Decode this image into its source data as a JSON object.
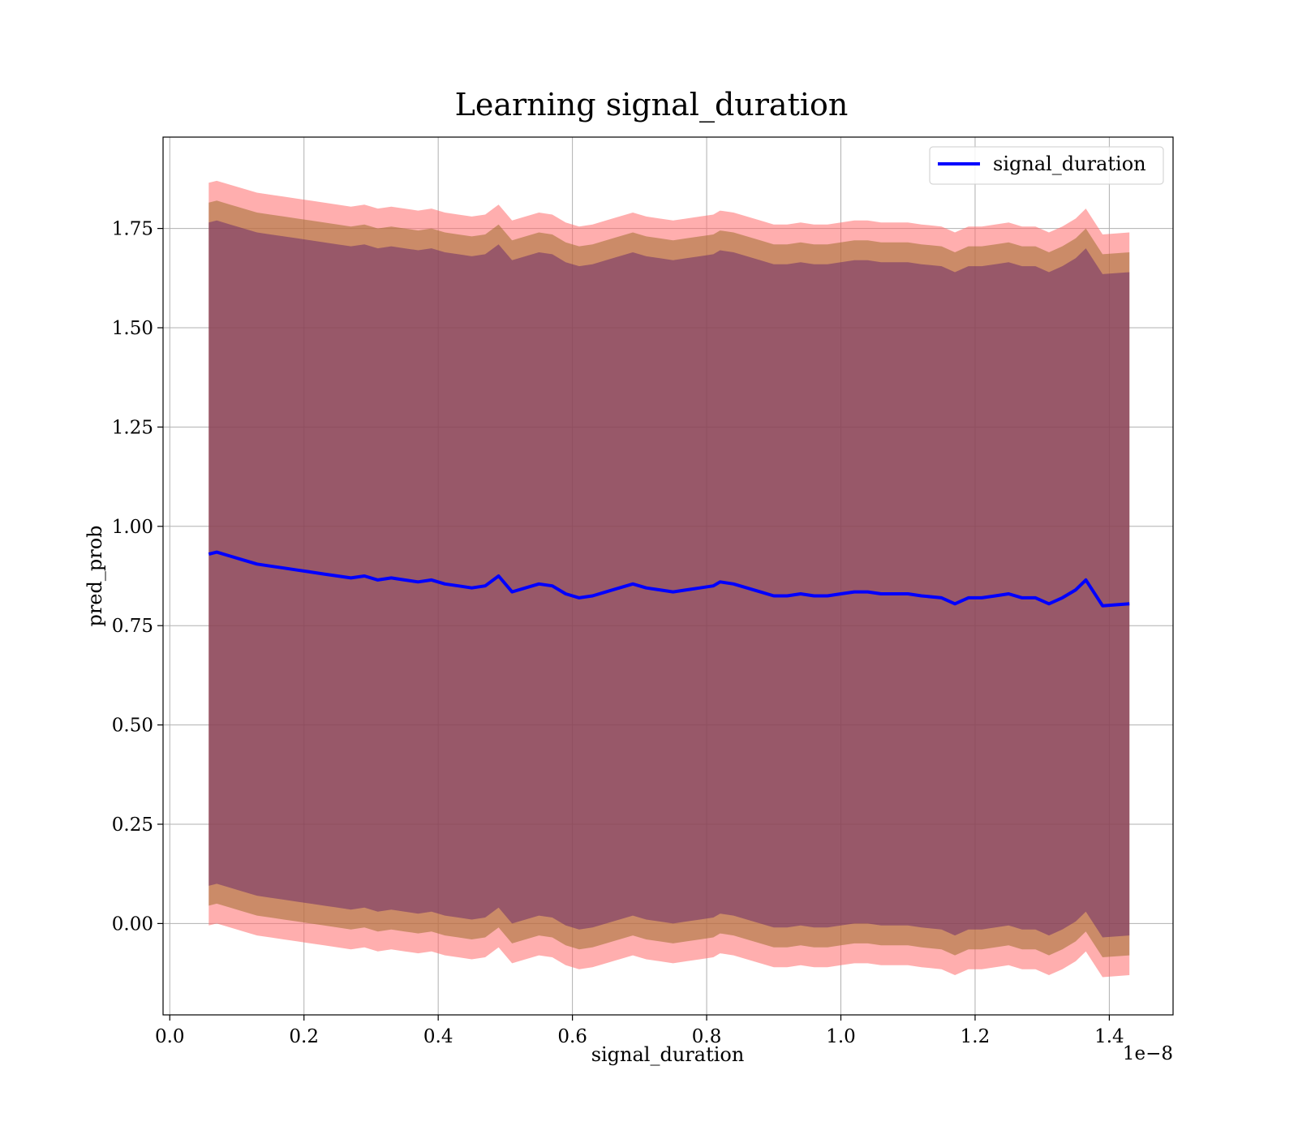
{
  "chart_data": {
    "type": "line",
    "title": "Learning signal_duration",
    "xlabel": "signal_duration",
    "ylabel": "pred_prob",
    "x_offset_label": "1e−8",
    "xlim": [
      -0.01,
      1.495
    ],
    "ylim": [
      -0.23,
      1.98
    ],
    "xticks": [
      0.0,
      0.2,
      0.4,
      0.6,
      0.8,
      1.0,
      1.2,
      1.4
    ],
    "xtick_labels": [
      "0.0",
      "0.2",
      "0.4",
      "0.6",
      "0.8",
      "1.0",
      "1.2",
      "1.4"
    ],
    "yticks": [
      0.0,
      0.25,
      0.5,
      0.75,
      1.0,
      1.25,
      1.5,
      1.75
    ],
    "ytick_labels": [
      "0.00",
      "0.25",
      "0.50",
      "0.75",
      "1.00",
      "1.25",
      "1.50",
      "1.75"
    ],
    "grid": true,
    "legend": {
      "position": "top-right",
      "entries": [
        "signal_duration"
      ]
    },
    "colors": {
      "line": "#0000ff",
      "band_outer": "#ff6b6b",
      "band_middle": "#a07030",
      "band_inner": "#5a1a6a",
      "grid": "#b0b0b0"
    },
    "series": [
      {
        "name": "signal_duration",
        "x": [
          0.058,
          0.07,
          0.09,
          0.11,
          0.13,
          0.15,
          0.17,
          0.19,
          0.21,
          0.23,
          0.25,
          0.27,
          0.29,
          0.31,
          0.33,
          0.35,
          0.37,
          0.39,
          0.41,
          0.43,
          0.45,
          0.47,
          0.49,
          0.51,
          0.53,
          0.55,
          0.57,
          0.59,
          0.61,
          0.63,
          0.65,
          0.67,
          0.69,
          0.71,
          0.73,
          0.75,
          0.77,
          0.79,
          0.81,
          0.82,
          0.84,
          0.86,
          0.88,
          0.9,
          0.92,
          0.94,
          0.96,
          0.98,
          1.0,
          1.02,
          1.04,
          1.06,
          1.08,
          1.1,
          1.12,
          1.15,
          1.17,
          1.19,
          1.21,
          1.23,
          1.25,
          1.27,
          1.29,
          1.31,
          1.33,
          1.35,
          1.365,
          1.39,
          1.43
        ],
        "values": [
          0.93,
          0.935,
          0.925,
          0.915,
          0.905,
          0.9,
          0.895,
          0.89,
          0.885,
          0.88,
          0.875,
          0.87,
          0.875,
          0.865,
          0.87,
          0.865,
          0.86,
          0.865,
          0.855,
          0.85,
          0.845,
          0.85,
          0.875,
          0.835,
          0.845,
          0.855,
          0.85,
          0.83,
          0.82,
          0.825,
          0.835,
          0.845,
          0.855,
          0.845,
          0.84,
          0.835,
          0.84,
          0.845,
          0.85,
          0.86,
          0.855,
          0.845,
          0.835,
          0.825,
          0.825,
          0.83,
          0.825,
          0.825,
          0.83,
          0.835,
          0.835,
          0.83,
          0.83,
          0.83,
          0.825,
          0.82,
          0.805,
          0.82,
          0.82,
          0.825,
          0.83,
          0.82,
          0.82,
          0.805,
          0.82,
          0.84,
          0.865,
          0.8,
          0.805
        ]
      }
    ],
    "bands": [
      {
        "lower_offset": -0.935,
        "upper_offset": 0.935
      },
      {
        "lower_offset": -0.885,
        "upper_offset": 0.885
      },
      {
        "lower_offset": -0.835,
        "upper_offset": 0.835
      }
    ]
  }
}
